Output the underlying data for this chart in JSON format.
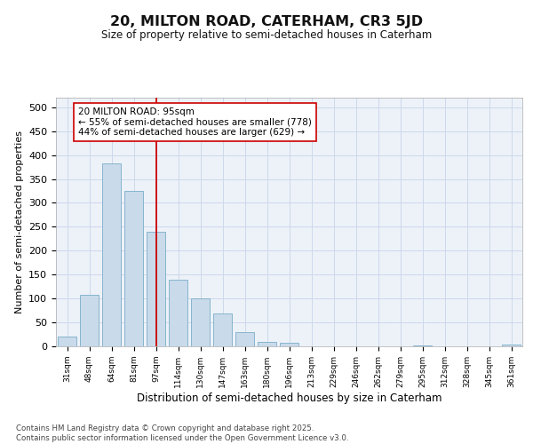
{
  "title": "20, MILTON ROAD, CATERHAM, CR3 5JD",
  "subtitle": "Size of property relative to semi-detached houses in Caterham",
  "xlabel": "Distribution of semi-detached houses by size in Caterham",
  "ylabel": "Number of semi-detached properties",
  "categories": [
    "31sqm",
    "48sqm",
    "64sqm",
    "81sqm",
    "97sqm",
    "114sqm",
    "130sqm",
    "147sqm",
    "163sqm",
    "180sqm",
    "196sqm",
    "213sqm",
    "229sqm",
    "246sqm",
    "262sqm",
    "279sqm",
    "295sqm",
    "312sqm",
    "328sqm",
    "345sqm",
    "361sqm"
  ],
  "values": [
    20,
    108,
    383,
    325,
    240,
    140,
    101,
    69,
    29,
    10,
    7,
    0,
    0,
    0,
    0,
    0,
    2,
    0,
    0,
    0,
    3
  ],
  "bar_color": "#c9daea",
  "bar_edge_color": "#7aadc8",
  "vline_x_index": 4,
  "vline_color": "#cc0000",
  "annotation_text": "20 MILTON ROAD: 95sqm\n← 55% of semi-detached houses are smaller (778)\n44% of semi-detached houses are larger (629) →",
  "annotation_box_color": "#ffffff",
  "annotation_box_edge_color": "#cc0000",
  "grid_color": "#cdd8ea",
  "background_color": "#edf2f9",
  "ylim": [
    0,
    520
  ],
  "yticks": [
    0,
    50,
    100,
    150,
    200,
    250,
    300,
    350,
    400,
    450,
    500
  ],
  "footer_text": "Contains HM Land Registry data © Crown copyright and database right 2025.\nContains public sector information licensed under the Open Government Licence v3.0."
}
